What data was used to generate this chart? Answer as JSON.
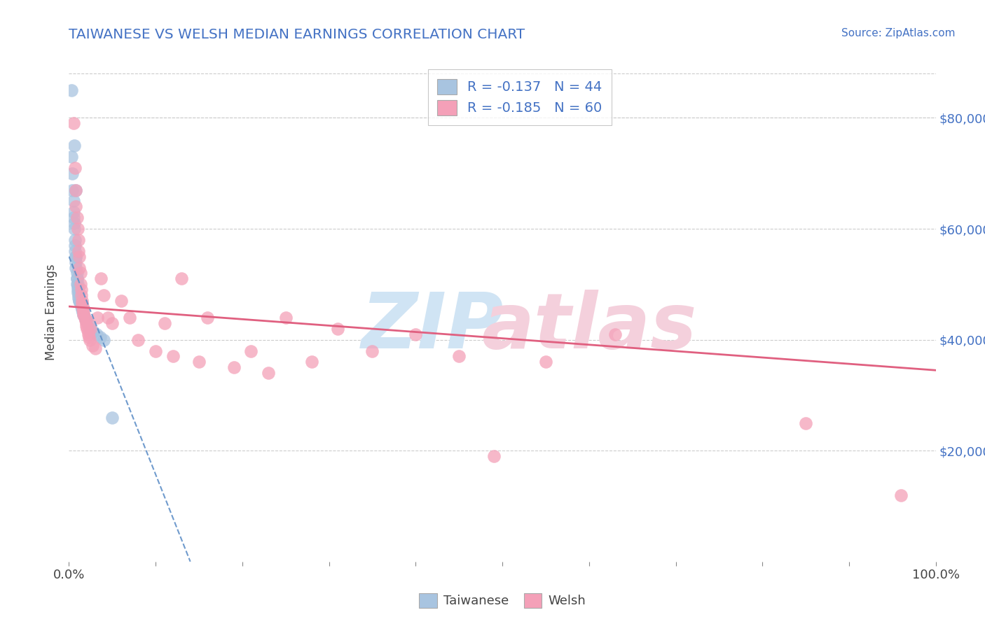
{
  "title": "TAIWANESE VS WELSH MEDIAN EARNINGS CORRELATION CHART",
  "source_text": "Source: ZipAtlas.com",
  "ylabel": "Median Earnings",
  "xlim": [
    0,
    1.0
  ],
  "ylim": [
    0,
    90000
  ],
  "ytick_values": [
    20000,
    40000,
    60000,
    80000
  ],
  "ytick_labels": [
    "$20,000",
    "$40,000",
    "$60,000",
    "$80,000"
  ],
  "legend_r1": "R = -0.137",
  "legend_n1": "N = 44",
  "legend_r2": "R = -0.185",
  "legend_n2": "N = 60",
  "legend_label1": "Taiwanese",
  "legend_label2": "Welsh",
  "color_taiwanese": "#a8c4e0",
  "color_welsh": "#f4a0b8",
  "color_title": "#4472c4",
  "color_source": "#4472c4",
  "color_legend_text": "#4472c4",
  "color_trendline_taiwanese": "#6090c8",
  "color_trendline_welsh": "#e06080",
  "color_grid": "#cccccc",
  "watermark_zip_color": "#d0e4f4",
  "watermark_atlas_color": "#f4d0dc",
  "taiwanese_x": [
    0.003,
    0.003,
    0.004,
    0.004,
    0.005,
    0.005,
    0.005,
    0.006,
    0.006,
    0.006,
    0.007,
    0.007,
    0.007,
    0.008,
    0.008,
    0.008,
    0.008,
    0.008,
    0.009,
    0.009,
    0.009,
    0.009,
    0.01,
    0.01,
    0.01,
    0.01,
    0.011,
    0.011,
    0.012,
    0.012,
    0.013,
    0.014,
    0.015,
    0.016,
    0.017,
    0.018,
    0.02,
    0.022,
    0.025,
    0.028,
    0.032,
    0.036,
    0.04,
    0.05
  ],
  "taiwanese_y": [
    85000,
    73000,
    70000,
    67000,
    65000,
    63000,
    62000,
    61000,
    60000,
    75000,
    58000,
    57000,
    56000,
    55000,
    55000,
    54000,
    53000,
    67000,
    52000,
    51000,
    51000,
    50000,
    50000,
    49500,
    49000,
    48500,
    48000,
    47500,
    47000,
    47000,
    46500,
    46000,
    45500,
    45000,
    44500,
    44000,
    43500,
    43000,
    42000,
    41500,
    41000,
    40500,
    40000,
    26000
  ],
  "welsh_x": [
    0.005,
    0.007,
    0.008,
    0.008,
    0.009,
    0.01,
    0.011,
    0.011,
    0.012,
    0.012,
    0.013,
    0.013,
    0.014,
    0.014,
    0.015,
    0.015,
    0.016,
    0.016,
    0.017,
    0.017,
    0.018,
    0.019,
    0.02,
    0.02,
    0.021,
    0.022,
    0.022,
    0.023,
    0.024,
    0.025,
    0.027,
    0.03,
    0.033,
    0.037,
    0.04,
    0.045,
    0.05,
    0.06,
    0.07,
    0.08,
    0.1,
    0.11,
    0.12,
    0.13,
    0.15,
    0.16,
    0.19,
    0.21,
    0.23,
    0.25,
    0.28,
    0.31,
    0.35,
    0.4,
    0.45,
    0.49,
    0.55,
    0.63,
    0.85,
    0.96
  ],
  "welsh_y": [
    79000,
    71000,
    67000,
    64000,
    62000,
    60000,
    58000,
    56000,
    55000,
    53000,
    52000,
    50000,
    49000,
    48000,
    47000,
    46500,
    46000,
    45500,
    45000,
    44500,
    44000,
    43500,
    43000,
    42500,
    42000,
    41500,
    41000,
    40500,
    40000,
    42000,
    39000,
    38500,
    44000,
    51000,
    48000,
    44000,
    43000,
    47000,
    44000,
    40000,
    38000,
    43000,
    37000,
    51000,
    36000,
    44000,
    35000,
    38000,
    34000,
    44000,
    36000,
    42000,
    38000,
    41000,
    37000,
    19000,
    36000,
    41000,
    25000,
    12000
  ],
  "tw_trend_x0": 0.0,
  "tw_trend_y0": 55000,
  "tw_trend_x1": 0.14,
  "tw_trend_y1": 0,
  "wl_trend_x0": 0.0,
  "wl_trend_y0": 46000,
  "wl_trend_x1": 1.0,
  "wl_trend_y1": 34500
}
